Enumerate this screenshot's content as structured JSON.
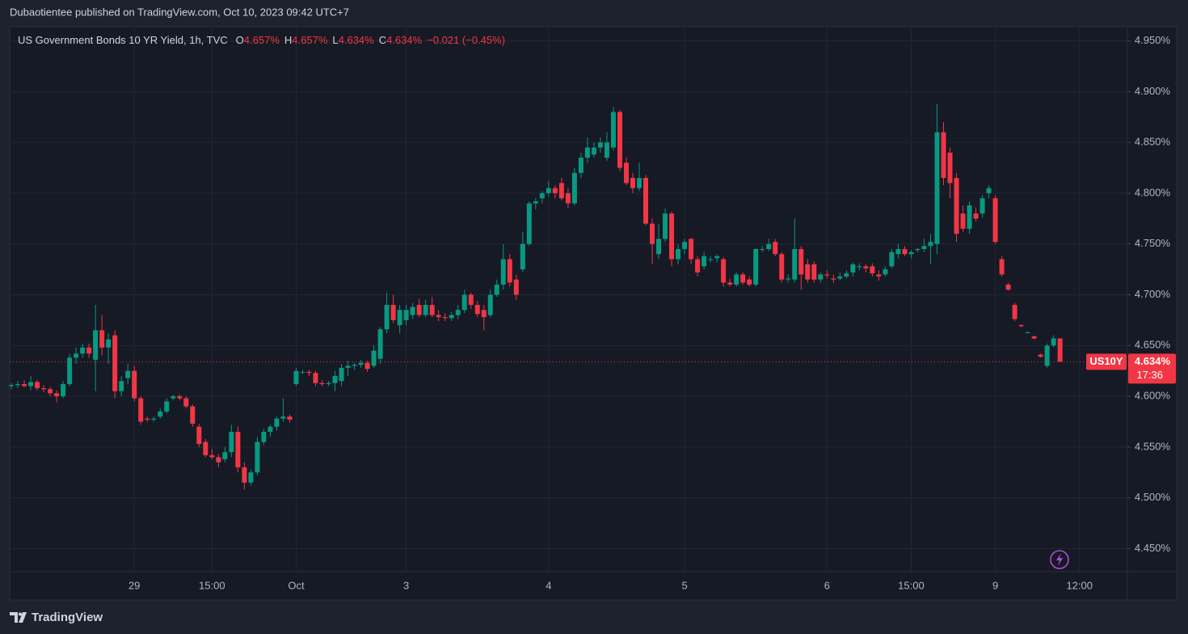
{
  "header": {
    "publisher": "Dubaotientee published on TradingView.com, Oct 10, 2023 09:42 UTC+7"
  },
  "footer": {
    "brand": "TradingView"
  },
  "chart_data": {
    "type": "candlestick",
    "title": "US Government Bonds 10 YR Yield, 1h, TVC",
    "ohlc_legend": [
      {
        "key": "O",
        "value": "4.657%"
      },
      {
        "key": "H",
        "value": "4.657%"
      },
      {
        "key": "L",
        "value": "4.634%"
      },
      {
        "key": "C",
        "value": "4.634%"
      }
    ],
    "change": "−0.021 (−0.45%)",
    "symbol": "US10Y",
    "last_price": 4.634,
    "last_price_label": "4.634%",
    "countdown": "17:36",
    "up_color": "#089981",
    "down_color": "#f23645",
    "grid": true,
    "ylim": [
      4.428,
      4.964
    ],
    "yticks": [
      {
        "value": 4.45,
        "label": "4.450%"
      },
      {
        "value": 4.5,
        "label": "4.500%"
      },
      {
        "value": 4.55,
        "label": "4.550%"
      },
      {
        "value": 4.6,
        "label": "4.600%"
      },
      {
        "value": 4.65,
        "label": "4.650%"
      },
      {
        "value": 4.7,
        "label": "4.700%"
      },
      {
        "value": 4.75,
        "label": "4.750%"
      },
      {
        "value": 4.8,
        "label": "4.800%"
      },
      {
        "value": 4.85,
        "label": "4.850%"
      },
      {
        "value": 4.9,
        "label": "4.900%"
      },
      {
        "value": 4.95,
        "label": "4.950%"
      }
    ],
    "xlim": [
      -0.25,
      172.4
    ],
    "xticks": [
      {
        "value": 19,
        "label": "29"
      },
      {
        "value": 31,
        "label": "15:00"
      },
      {
        "value": 44,
        "label": "Oct"
      },
      {
        "value": 61,
        "label": "3"
      },
      {
        "value": 83,
        "label": "4"
      },
      {
        "value": 104,
        "label": "5"
      },
      {
        "value": 126,
        "label": "6"
      },
      {
        "value": 139,
        "label": "15:00"
      },
      {
        "value": 152,
        "label": "9"
      },
      {
        "value": 165,
        "label": "12:00"
      }
    ],
    "open": [
      4.61,
      4.611,
      4.612,
      4.61,
      4.614,
      4.608,
      4.607,
      4.603,
      4.6,
      4.612,
      4.638,
      4.642,
      4.648,
      4.636,
      4.665,
      4.648,
      4.66,
      4.605,
      4.618,
      4.625,
      4.598,
      4.578,
      4.577,
      4.58,
      4.585,
      4.598,
      4.6,
      4.598,
      4.59,
      4.57,
      4.555,
      4.542,
      4.54,
      4.538,
      4.545,
      4.565,
      4.53,
      4.515,
      4.525,
      4.555,
      4.565,
      4.57,
      4.578,
      4.58,
      4.612,
      4.624,
      4.624,
      4.623,
      4.613,
      4.612,
      4.613,
      4.615,
      4.628,
      4.63,
      4.631,
      4.633,
      4.63,
      4.637,
      4.666,
      4.69,
      4.67,
      4.675,
      4.68,
      4.69,
      4.68,
      4.69,
      4.68,
      4.678,
      4.677,
      4.68,
      4.685,
      4.7,
      4.69,
      4.685,
      4.68,
      4.7,
      4.71,
      4.735,
      4.715,
      4.725,
      4.75,
      4.79,
      4.795,
      4.8,
      4.805,
      4.81,
      4.8,
      4.79,
      4.82,
      4.835,
      4.838,
      4.845,
      4.835,
      4.845,
      4.88,
      4.83,
      4.815,
      4.805,
      4.815,
      4.77,
      4.74,
      4.755,
      4.78,
      4.735,
      4.745,
      4.755,
      4.735,
      4.728,
      4.735,
      4.736,
      4.735,
      4.712,
      4.71,
      4.72,
      4.715,
      4.71,
      4.745,
      4.745,
      4.752,
      4.74,
      4.715,
      4.715,
      4.745,
      4.73,
      4.73,
      4.715,
      4.72,
      4.716,
      4.716,
      4.718,
      4.722,
      4.728,
      4.728,
      4.728,
      4.72,
      4.72,
      4.728,
      4.74,
      4.745,
      4.74,
      4.744,
      4.745,
      4.748,
      4.75,
      4.86,
      4.84,
      4.815,
      4.78,
      4.765,
      4.78,
      4.78,
      4.8,
      4.795,
      4.735,
      4.71,
      4.69,
      4.67,
      4.663,
      4.659,
      4.641,
      4.63,
      4.65,
      4.657
    ],
    "high": [
      4.613,
      4.615,
      4.616,
      4.62,
      4.616,
      4.611,
      4.609,
      4.606,
      4.615,
      4.642,
      4.648,
      4.652,
      4.652,
      4.69,
      4.68,
      4.662,
      4.665,
      4.62,
      4.632,
      4.63,
      4.6,
      4.58,
      4.58,
      4.588,
      4.598,
      4.602,
      4.602,
      4.6,
      4.592,
      4.573,
      4.558,
      4.548,
      4.543,
      4.55,
      4.572,
      4.57,
      4.535,
      4.528,
      4.56,
      4.568,
      4.572,
      4.58,
      4.598,
      4.582,
      4.628,
      4.626,
      4.626,
      4.625,
      4.616,
      4.615,
      4.625,
      4.632,
      4.635,
      4.633,
      4.636,
      4.635,
      4.65,
      4.668,
      4.702,
      4.7,
      4.69,
      4.69,
      4.692,
      4.696,
      4.695,
      4.698,
      4.685,
      4.682,
      4.683,
      4.69,
      4.705,
      4.702,
      4.694,
      4.69,
      4.705,
      4.715,
      4.75,
      4.74,
      4.72,
      4.762,
      4.792,
      4.795,
      4.802,
      4.812,
      4.808,
      4.815,
      4.805,
      4.825,
      4.84,
      4.855,
      4.85,
      4.855,
      4.86,
      4.885,
      4.882,
      4.835,
      4.82,
      4.83,
      4.818,
      4.775,
      4.77,
      4.785,
      4.782,
      4.75,
      4.755,
      4.756,
      4.738,
      4.742,
      4.738,
      4.74,
      4.737,
      4.716,
      4.722,
      4.722,
      4.718,
      4.746,
      4.748,
      4.755,
      4.755,
      4.742,
      4.72,
      4.775,
      4.748,
      4.735,
      4.733,
      4.722,
      4.724,
      4.72,
      4.722,
      4.724,
      4.732,
      4.731,
      4.73,
      4.731,
      4.724,
      4.728,
      4.745,
      4.75,
      4.748,
      4.744,
      4.746,
      4.755,
      4.76,
      4.888,
      4.87,
      4.845,
      4.82,
      4.788,
      4.792,
      4.786,
      4.798,
      4.808,
      4.798,
      4.738,
      4.712,
      4.692,
      4.671,
      4.664,
      4.66,
      4.642,
      4.652,
      4.66,
      4.657
    ],
    "low": [
      4.607,
      4.608,
      4.609,
      4.606,
      4.606,
      4.604,
      4.6,
      4.594,
      4.598,
      4.61,
      4.632,
      4.638,
      4.638,
      4.605,
      4.64,
      4.632,
      4.598,
      4.6,
      4.612,
      4.595,
      4.572,
      4.575,
      4.575,
      4.578,
      4.583,
      4.596,
      4.596,
      4.588,
      4.57,
      4.55,
      4.54,
      4.538,
      4.53,
      4.535,
      4.54,
      4.525,
      4.508,
      4.512,
      4.522,
      4.552,
      4.56,
      4.566,
      4.575,
      4.574,
      4.61,
      4.622,
      4.62,
      4.61,
      4.61,
      4.61,
      4.605,
      4.61,
      4.62,
      4.626,
      4.628,
      4.624,
      4.628,
      4.632,
      4.662,
      4.672,
      4.662,
      4.67,
      4.676,
      4.678,
      4.678,
      4.678,
      4.674,
      4.674,
      4.674,
      4.676,
      4.682,
      4.686,
      4.678,
      4.665,
      4.678,
      4.698,
      4.705,
      4.708,
      4.695,
      4.722,
      4.748,
      4.784,
      4.79,
      4.797,
      4.795,
      4.793,
      4.785,
      4.788,
      4.815,
      4.83,
      4.835,
      4.84,
      4.832,
      4.842,
      4.822,
      4.808,
      4.8,
      4.802,
      4.768,
      4.73,
      4.735,
      4.752,
      4.728,
      4.73,
      4.74,
      4.73,
      4.718,
      4.725,
      4.732,
      4.732,
      4.708,
      4.708,
      4.708,
      4.71,
      4.708,
      4.708,
      4.742,
      4.743,
      4.738,
      4.712,
      4.712,
      4.712,
      4.705,
      4.712,
      4.712,
      4.712,
      4.716,
      4.712,
      4.714,
      4.716,
      4.718,
      4.724,
      4.722,
      4.718,
      4.714,
      4.718,
      4.726,
      4.736,
      4.738,
      4.736,
      4.742,
      4.742,
      4.73,
      4.74,
      4.808,
      4.795,
      4.752,
      4.762,
      4.76,
      4.772,
      4.776,
      4.795,
      4.75,
      4.718,
      4.704,
      4.674,
      4.668,
      4.662,
      4.656,
      4.638,
      4.628,
      4.648,
      4.634
    ],
    "close": [
      4.611,
      4.612,
      4.61,
      4.614,
      4.608,
      4.607,
      4.603,
      4.6,
      4.612,
      4.638,
      4.642,
      4.648,
      4.642,
      4.665,
      4.648,
      4.656,
      4.605,
      4.615,
      4.625,
      4.598,
      4.575,
      4.577,
      4.578,
      4.585,
      4.595,
      4.6,
      4.598,
      4.59,
      4.573,
      4.553,
      4.542,
      4.54,
      4.535,
      4.545,
      4.565,
      4.53,
      4.515,
      4.525,
      4.555,
      4.565,
      4.57,
      4.578,
      4.58,
      4.577,
      4.625,
      4.624,
      4.623,
      4.613,
      4.612,
      4.613,
      4.62,
      4.628,
      4.63,
      4.631,
      4.633,
      4.627,
      4.645,
      4.666,
      4.69,
      4.675,
      4.685,
      4.685,
      4.688,
      4.68,
      4.69,
      4.68,
      4.678,
      4.677,
      4.68,
      4.685,
      4.7,
      4.69,
      4.681,
      4.678,
      4.7,
      4.71,
      4.735,
      4.712,
      4.7,
      4.75,
      4.79,
      4.792,
      4.8,
      4.805,
      4.8,
      4.795,
      4.79,
      4.82,
      4.835,
      4.845,
      4.845,
      4.85,
      4.85,
      4.88,
      4.825,
      4.81,
      4.805,
      4.815,
      4.77,
      4.75,
      4.755,
      4.78,
      4.735,
      4.745,
      4.752,
      4.735,
      4.722,
      4.738,
      4.735,
      4.738,
      4.712,
      4.71,
      4.72,
      4.712,
      4.71,
      4.745,
      4.745,
      4.75,
      4.74,
      4.715,
      4.716,
      4.745,
      4.72,
      4.715,
      4.715,
      4.72,
      4.719,
      4.715,
      4.718,
      4.721,
      4.73,
      4.728,
      4.726,
      4.721,
      4.718,
      4.725,
      4.742,
      4.745,
      4.74,
      4.742,
      4.745,
      4.748,
      4.752,
      4.86,
      4.815,
      4.81,
      4.76,
      4.765,
      4.788,
      4.775,
      4.795,
      4.805,
      4.752,
      4.72,
      4.705,
      4.676,
      4.669,
      4.663,
      4.657,
      4.639,
      4.65,
      4.657,
      4.634
    ]
  }
}
